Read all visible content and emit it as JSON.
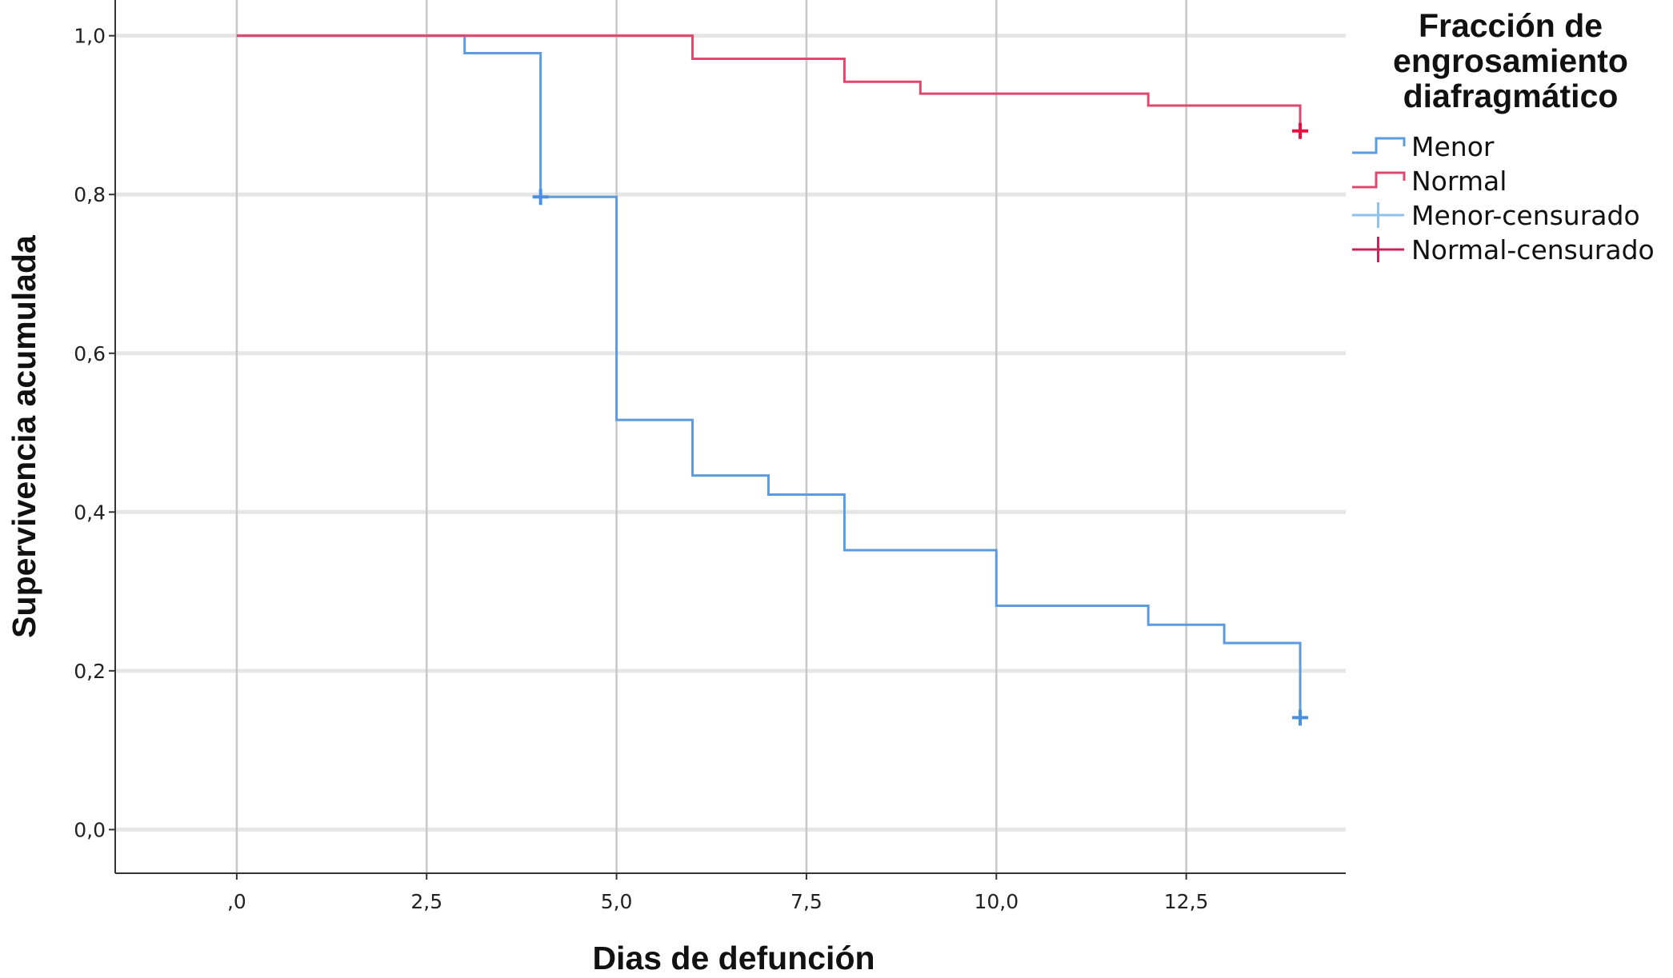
{
  "chart_data": {
    "type": "line",
    "subtype": "kaplan-meier step",
    "xlabel": "Dias de defunción",
    "ylabel": "Supervivencia acumulada",
    "xlim": [
      -1.6,
      14.6
    ],
    "ylim": [
      -0.055,
      1.045
    ],
    "x_ticks": [
      0,
      2.5,
      5,
      7.5,
      10,
      12.5
    ],
    "x_tick_labels": [
      ",0",
      "2,5",
      "5,0",
      "7,5",
      "10,0",
      "12,5"
    ],
    "y_ticks": [
      0,
      0.2,
      0.4,
      0.6,
      0.8,
      1.0
    ],
    "y_tick_labels": [
      "0,0",
      "0,2",
      "0,4",
      "0,6",
      "0,8",
      "1,0"
    ],
    "grid": "both",
    "legend": {
      "title_lines": [
        "Fracción de",
        "engrosamiento",
        "diafragmático"
      ],
      "placement": "right",
      "entries": [
        {
          "label": "Menor",
          "kind": "step",
          "color": "#5B9BE0"
        },
        {
          "label": "Normal",
          "kind": "step",
          "color": "#E0466E"
        },
        {
          "label": "Menor-censurado",
          "kind": "censor",
          "color": "#8EC3EE"
        },
        {
          "label": "Normal-censurado",
          "kind": "censor",
          "color": "#C8245A"
        }
      ]
    },
    "series": [
      {
        "name": "Menor",
        "color": "#5B9BE0",
        "steps": [
          [
            0,
            1.0
          ],
          [
            3,
            0.978
          ],
          [
            4,
            0.797
          ],
          [
            5,
            0.516
          ],
          [
            6,
            0.446
          ],
          [
            7,
            0.422
          ],
          [
            8,
            0.352
          ],
          [
            10,
            0.282
          ],
          [
            12,
            0.258
          ],
          [
            13,
            0.235
          ],
          [
            14,
            0.141
          ]
        ],
        "censored": [
          [
            4,
            0.797
          ],
          [
            14,
            0.141
          ]
        ],
        "censor_color": "#4A90E2"
      },
      {
        "name": "Normal",
        "color": "#E0466E",
        "steps": [
          [
            0,
            1.0
          ],
          [
            6,
            0.971
          ],
          [
            8,
            0.942
          ],
          [
            9,
            0.927
          ],
          [
            12,
            0.912
          ],
          [
            14,
            0.88
          ]
        ],
        "censored": [
          [
            14,
            0.88
          ]
        ],
        "censor_color": "#E8103C"
      }
    ]
  }
}
